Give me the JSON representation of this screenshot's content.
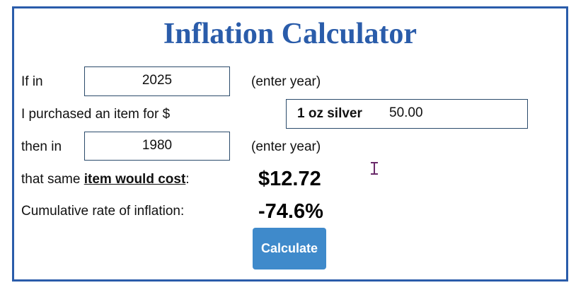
{
  "header": {
    "title": "Inflation Calculator"
  },
  "form": {
    "row1": {
      "label": "If in",
      "input": "2025",
      "hint": "(enter year)"
    },
    "row2": {
      "label": "I purchased an item for $",
      "item": "1 oz silver",
      "input": "50.00"
    },
    "row3": {
      "label": "then in",
      "input": "1980",
      "hint": "(enter year)"
    },
    "row4": {
      "label_start": "that same ",
      "label_bold": "item would cost",
      "label_end": ":",
      "result": "$12.72"
    },
    "row5": {
      "label": "Cumulative rate of inflation:",
      "result": "-74.6%"
    },
    "button": "Calculate"
  }
}
